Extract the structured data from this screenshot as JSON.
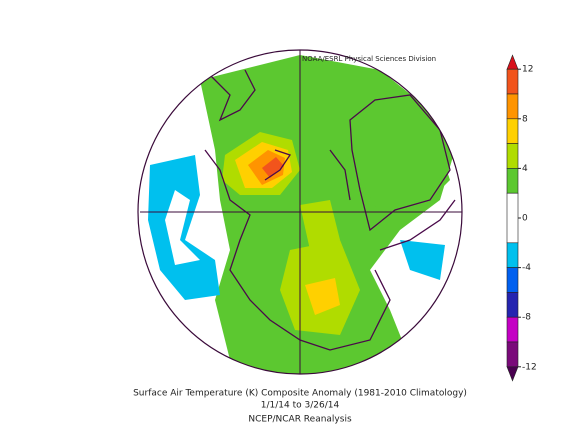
{
  "header": {
    "credit": "NOAA/ESRL Physical Sciences Division"
  },
  "caption": {
    "line1": "Surface Air Temperature (K) Composite Anomaly (1981-2010 Climatology)",
    "line2": "1/1/14  to 3/26/14",
    "line3": "NCEP/NCAR Reanalysis"
  },
  "colorbar": {
    "ticks": [
      12,
      8,
      4,
      0,
      -4,
      -8,
      -12
    ],
    "levels": [
      12,
      10,
      8,
      6,
      4,
      2,
      -2,
      -4,
      -6,
      -8,
      -10,
      -12
    ],
    "colors": [
      "#d8101a",
      "#f2541c",
      "#ff9400",
      "#ffd000",
      "#b0dc00",
      "#5cc830",
      "#ffffff",
      "#00c0ee",
      "#0060f0",
      "#2424b0",
      "#c400c4",
      "#7a0a7a",
      "#4a0050"
    ]
  }
}
